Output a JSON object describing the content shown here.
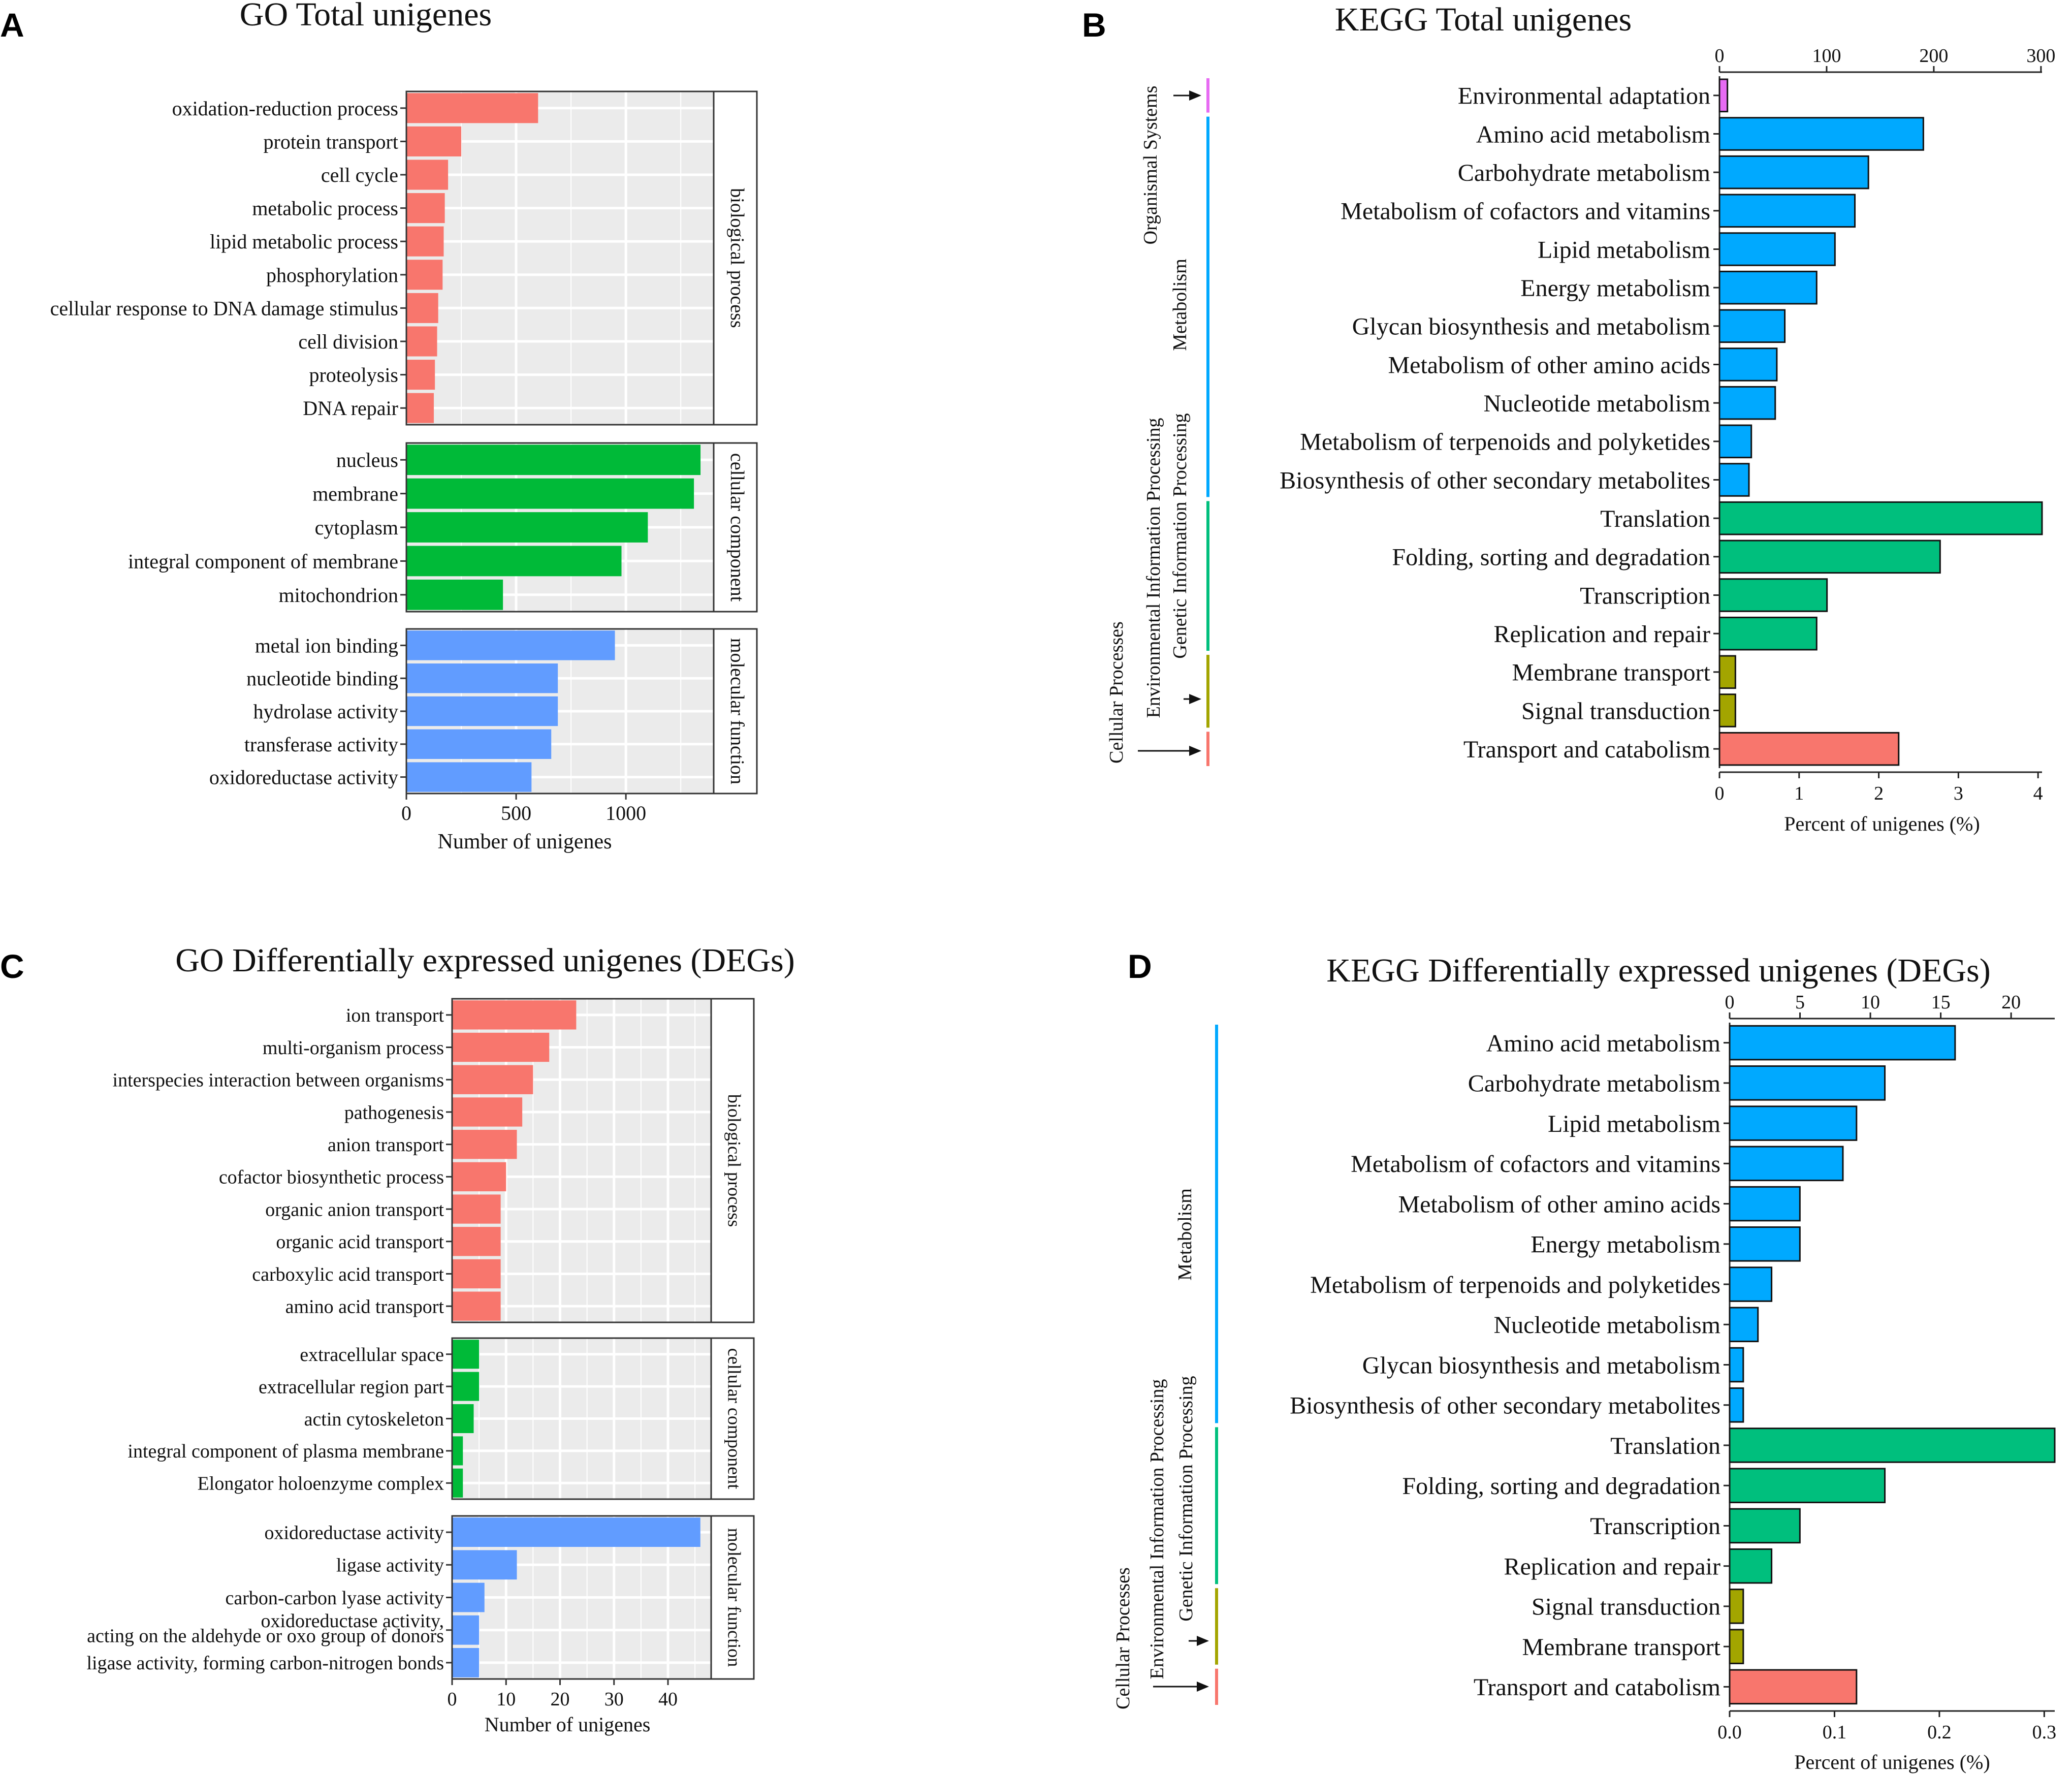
{
  "panels": {
    "A": {
      "letter": "A",
      "title": "GO Total unigenes",
      "xlabel": "Number of unigenes"
    },
    "B": {
      "letter": "B",
      "title": "KEGG Total unigenes",
      "xlabel": "Percent of unigenes (%)"
    },
    "C": {
      "letter": "C",
      "title": "GO Differentially expressed unigenes (DEGs)",
      "xlabel": "Number of unigenes"
    },
    "D": {
      "letter": "D",
      "title": "KEGG Differentially expressed unigenes (DEGs)",
      "xlabel": "Percent of unigenes (%)"
    }
  },
  "chart_data": [
    {
      "panel": "A",
      "type": "bar",
      "orientation": "horizontal",
      "title": "GO Total unigenes",
      "xlabel": "Number of unigenes",
      "xlim": [
        0,
        1400
      ],
      "xticks": [
        0,
        500,
        1000
      ],
      "grid": true,
      "facets": [
        {
          "name": "biological process",
          "color": "#F8766D",
          "categories": [
            "oxidation-reduction process",
            "protein transport",
            "cell cycle",
            "metabolic process",
            "lipid metabolic process",
            "phosphorylation",
            "cellular response to DNA damage stimulus",
            "cell division",
            "proteolysis",
            "DNA repair"
          ],
          "values": [
            600,
            250,
            190,
            175,
            170,
            165,
            145,
            140,
            130,
            125
          ]
        },
        {
          "name": "cellular component",
          "color": "#00BA38",
          "categories": [
            "nucleus",
            "membrane",
            "cytoplasm",
            "integral component of membrane",
            "mitochondrion"
          ],
          "values": [
            1340,
            1310,
            1100,
            980,
            440
          ]
        },
        {
          "name": "molecular function",
          "color": "#619CFF",
          "categories": [
            "metal ion binding",
            "nucleotide binding",
            "hydrolase activity",
            "transferase activity",
            "oxidoreductase activity"
          ],
          "values": [
            950,
            690,
            690,
            660,
            570
          ]
        }
      ]
    },
    {
      "panel": "B",
      "type": "bar",
      "orientation": "horizontal",
      "title": "KEGG Total unigenes",
      "xlabel": "Percent of unigenes (%)",
      "xlim_bottom": [
        0,
        4.05
      ],
      "xticks_bottom": [
        0,
        1,
        2,
        3,
        4
      ],
      "xticks_top": [
        0,
        100,
        200,
        300
      ],
      "top_axis_max": 301,
      "groups": [
        {
          "name": "Organismal Systems",
          "color": "#E76BF3",
          "categories": [
            "Environmental adaptation"
          ],
          "values": [
            0.1
          ]
        },
        {
          "name": "Metabolism",
          "color": "#00A9FF",
          "categories": [
            "Amino acid metabolism",
            "Carbohydrate metabolism",
            "Metabolism of cofactors and vitamins",
            "Lipid metabolism",
            "Energy metabolism",
            "Glycan biosynthesis and metabolism",
            "Metabolism of other amino acids",
            "Nucleotide metabolism",
            "Metabolism of terpenoids and polyketides",
            "Biosynthesis of other secondary metabolites"
          ],
          "values": [
            2.56,
            1.87,
            1.7,
            1.45,
            1.22,
            0.82,
            0.72,
            0.7,
            0.4,
            0.37
          ]
        },
        {
          "name": "Genetic Information Processing",
          "color": "#00BF7D",
          "categories": [
            "Translation",
            "Folding, sorting and degradation",
            "Transcription",
            "Replication and repair"
          ],
          "values": [
            4.05,
            2.77,
            1.35,
            1.22
          ]
        },
        {
          "name": "Environmental Information Processing",
          "color": "#A3A500",
          "categories": [
            "Membrane transport",
            "Signal transduction"
          ],
          "values": [
            0.2,
            0.2
          ]
        },
        {
          "name": "Cellular Processes",
          "color": "#F8766D",
          "categories": [
            "Transport and catabolism"
          ],
          "values": [
            2.25
          ]
        }
      ]
    },
    {
      "panel": "C",
      "type": "bar",
      "orientation": "horizontal",
      "title": "GO Differentially expressed unigenes (DEGs)",
      "xlabel": "Number of unigenes",
      "xlim": [
        0,
        48
      ],
      "xticks": [
        0,
        10,
        20,
        30,
        40
      ],
      "grid": true,
      "facets": [
        {
          "name": "biological process",
          "color": "#F8766D",
          "categories": [
            "ion transport",
            "multi-organism process",
            "interspecies interaction between organisms",
            "pathogenesis",
            "anion transport",
            "cofactor biosynthetic process",
            "organic anion transport",
            "organic acid transport",
            "carboxylic acid transport",
            "amino acid transport"
          ],
          "values": [
            23,
            18,
            15,
            13,
            12,
            10,
            9,
            9,
            9,
            9
          ]
        },
        {
          "name": "cellular component",
          "color": "#00BA38",
          "categories": [
            "extracellular space",
            "extracellular region part",
            "actin cytoskeleton",
            "integral component of plasma membrane",
            "Elongator holoenzyme complex"
          ],
          "values": [
            5,
            5,
            4,
            2,
            2
          ]
        },
        {
          "name": "molecular function",
          "color": "#619CFF",
          "categories": [
            "oxidoreductase activity",
            "ligase activity",
            "carbon-carbon lyase activity",
            "oxidoreductase activity,\nacting on the aldehyde or oxo group of donors",
            "ligase activity, forming carbon-nitrogen bonds"
          ],
          "values": [
            46,
            12,
            6,
            5,
            5
          ]
        }
      ]
    },
    {
      "panel": "D",
      "type": "bar",
      "orientation": "horizontal",
      "title": "KEGG Differentially expressed unigenes (DEGs)",
      "xlabel": "Percent of unigenes (%)",
      "xlim_bottom": [
        0,
        0.31
      ],
      "xticks_bottom": [
        "0.0",
        "0.1",
        "0.2",
        "0.3"
      ],
      "xticks_top": [
        0,
        5,
        10,
        15,
        20
      ],
      "top_axis_max": 23.1,
      "groups": [
        {
          "name": "Metabolism",
          "color": "#00A9FF",
          "categories": [
            "Amino acid metabolism",
            "Carbohydrate metabolism",
            "Lipid metabolism",
            "Metabolism of cofactors and vitamins",
            "Metabolism of other amino acids",
            "Energy metabolism",
            "Metabolism of terpenoids and polyketides",
            "Nucleotide metabolism",
            "Glycan biosynthesis and metabolism",
            "Biosynthesis of other secondary metabolites"
          ],
          "values": [
            0.215,
            0.148,
            0.121,
            0.108,
            0.067,
            0.067,
            0.04,
            0.027,
            0.013,
            0.013
          ]
        },
        {
          "name": "Genetic Information Processing",
          "color": "#00BF7D",
          "categories": [
            "Translation",
            "Folding, sorting and degradation",
            "Transcription",
            "Replication and repair"
          ],
          "values": [
            0.31,
            0.148,
            0.067,
            0.04
          ]
        },
        {
          "name": "Environmental Information Processing",
          "color": "#A3A500",
          "categories": [
            "Signal transduction",
            "Membrane transport"
          ],
          "values": [
            0.013,
            0.013
          ]
        },
        {
          "name": "Cellular Processes",
          "color": "#F8766D",
          "categories": [
            "Transport and catabolism"
          ],
          "values": [
            0.121
          ]
        }
      ]
    }
  ]
}
